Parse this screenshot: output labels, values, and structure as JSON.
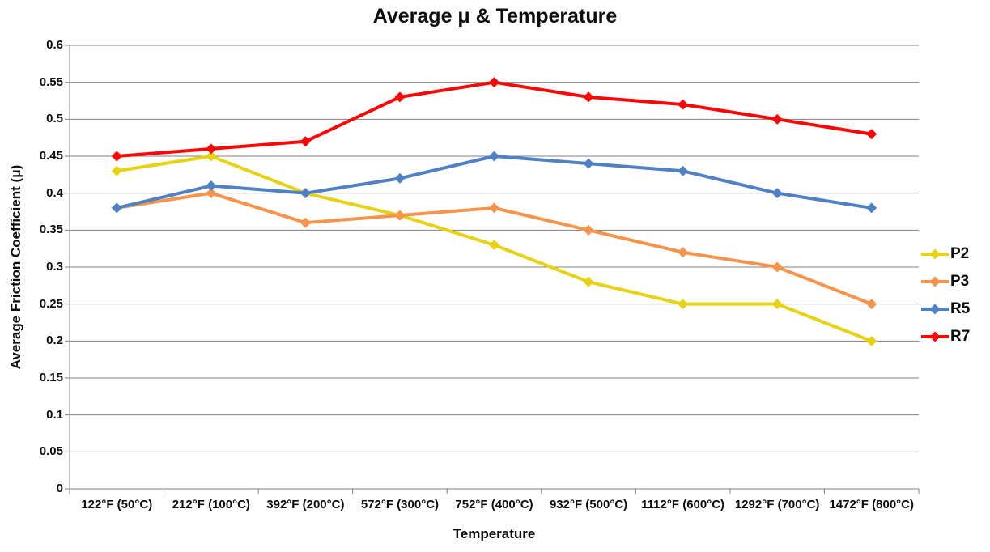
{
  "chart_data": {
    "type": "line",
    "title": "Average μ & Temperature",
    "xlabel": "Temperature",
    "ylabel": "Average Friction Coefficient (μ)",
    "categories": [
      "122°F (50°C)",
      "212°F (100°C)",
      "392°F (200°C)",
      "572°F (300°C)",
      "752°F (400°C)",
      "932°F (500°C)",
      "1112°F (600°C)",
      "1292°F (700°C)",
      "1472°F (800°C)"
    ],
    "series": [
      {
        "name": "P2",
        "color": "#e8d214",
        "values": [
          0.43,
          0.45,
          0.4,
          0.37,
          0.33,
          0.28,
          0.25,
          0.25,
          0.2
        ]
      },
      {
        "name": "P3",
        "color": "#f5944a",
        "values": [
          0.38,
          0.4,
          0.36,
          0.37,
          0.38,
          0.35,
          0.32,
          0.3,
          0.25
        ]
      },
      {
        "name": "R5",
        "color": "#5081c5",
        "values": [
          0.38,
          0.41,
          0.4,
          0.42,
          0.45,
          0.44,
          0.43,
          0.4,
          0.38
        ]
      },
      {
        "name": "R7",
        "color": "#fb0505",
        "values": [
          0.45,
          0.46,
          0.47,
          0.53,
          0.55,
          0.53,
          0.52,
          0.5,
          0.48
        ]
      }
    ],
    "ylim": [
      0,
      0.6
    ],
    "y_tick_step": 0.05,
    "y_tick_labels_top_to_bottom": [
      "0.6",
      "0.55",
      "0.5",
      "0.45",
      "0.4",
      "0.35",
      "0.3",
      "0.25",
      "0.2",
      "0.15",
      "0.1",
      "0.05",
      "0"
    ],
    "grid": true,
    "grid_color": "#818181",
    "axis_color": "#818181",
    "text_color": "#0d0d0d",
    "legend_position": "right",
    "marker": "diamond"
  }
}
